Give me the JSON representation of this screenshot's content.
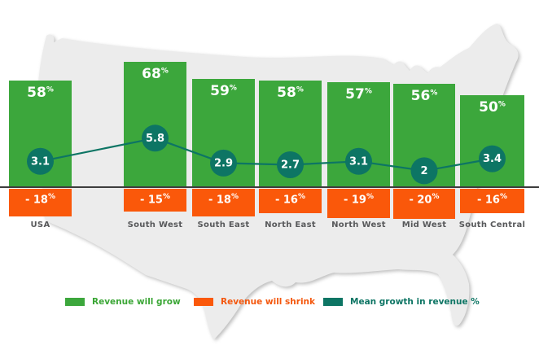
{
  "chart_data": {
    "type": "bar",
    "subtype": "diverging bars with line overlay on US map silhouette background",
    "title": "",
    "categories": [
      "USA",
      "South West",
      "South East",
      "North East",
      "North West",
      "Mid West",
      "South Central"
    ],
    "series": [
      {
        "name": "Revenue will grow",
        "type": "bar",
        "color": "#3ca73c",
        "values": [
          58,
          68,
          59,
          58,
          57,
          56,
          50
        ],
        "data_labels": [
          "58%",
          "68%",
          "59%",
          "58%",
          "57%",
          "56%",
          "50%"
        ]
      },
      {
        "name": "Revenue will shrink",
        "type": "bar",
        "color": "#fa580a",
        "values": [
          -18,
          -15,
          -18,
          -16,
          -19,
          -20,
          -16
        ],
        "data_labels": [
          "- 18%",
          "- 15%",
          "- 18%",
          "- 16%",
          "- 19%",
          "- 20%",
          "- 16%"
        ]
      },
      {
        "name": "Mean growth in revenue %",
        "type": "line",
        "color": "#0d7564",
        "marker": "filled-circle",
        "values": [
          3.1,
          5.8,
          2.9,
          2.7,
          3.1,
          2,
          3.4
        ],
        "data_labels": [
          "3.1",
          "5.8",
          "2.9",
          "2.7",
          "3.1",
          "2",
          "3.4"
        ]
      }
    ],
    "unit": "%",
    "axes": {
      "zero_baseline_visible": true,
      "gridlines": false,
      "y_tick_labels_visible": false
    },
    "legend_position": "bottom",
    "background_image": "us-map-silhouette",
    "colors": {
      "map_fill": "#ececec",
      "axis_line": "#3d3d3d",
      "category_label": "#58595b",
      "bar_value_text": "#ffffff"
    }
  },
  "legend": {
    "items": [
      {
        "label": "Revenue will grow",
        "color": "#3ca73c",
        "text_color": "#3aa635"
      },
      {
        "label": "Revenue will shrink",
        "color": "#fa580a",
        "text_color": "#f4570d"
      },
      {
        "label": "Mean growth in revenue %",
        "color": "#0d7564",
        "text_color": "#0d7564"
      }
    ]
  }
}
